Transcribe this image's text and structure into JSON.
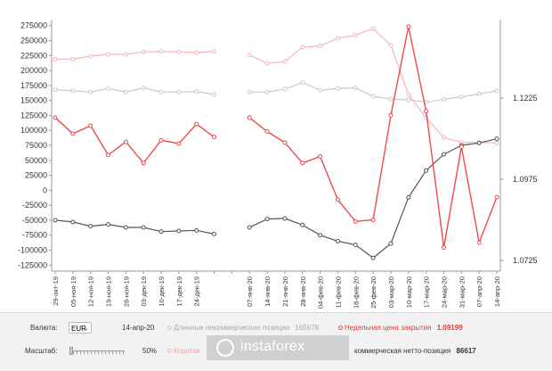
{
  "chart_data": {
    "type": "line",
    "categories": [
      "29-окт-19",
      "05-ноя-19",
      "12-ноя-19",
      "19-ноя-19",
      "26-ноя-19",
      "03-дек-19",
      "10-дек-19",
      "17-дек-19",
      "24-дек-19",
      "",
      "",
      "07-янв-20",
      "14-янв-20",
      "21-янв-20",
      "28-янв-20",
      "04-фев-20",
      "11-фев-20",
      "18-фев-20",
      "25-фев-20",
      "03-мар-20",
      "10-мар-20",
      "17-мар-20",
      "24-мар-20",
      "31-мар-20",
      "07-апр-20",
      "14-апр-20"
    ],
    "left_axis": {
      "ticks": [
        275000,
        250000,
        225000,
        200000,
        175000,
        150000,
        125000,
        100000,
        75000,
        50000,
        25000,
        0,
        -25000,
        -50000,
        -75000,
        -100000,
        -125000
      ],
      "min": -135000,
      "max": 285000
    },
    "right_axis": {
      "ticks": [
        1.1225,
        1.0975,
        1.0725
      ],
      "display": [
        "1.1225",
        "1.0975",
        "1.0725"
      ]
    },
    "series": [
      {
        "key": "long",
        "color": "#c9c9c9",
        "axis": "left",
        "values": [
          168000,
          166000,
          164000,
          170000,
          164000,
          171000,
          164000,
          164000,
          165000,
          160000,
          null,
          164000,
          164000,
          169000,
          180000,
          167000,
          170000,
          171000,
          157000,
          152000,
          151000,
          147000,
          152000,
          156000,
          161000,
          166000
        ]
      },
      {
        "key": "short",
        "color": "#f4b8b8",
        "axis": "left",
        "values": [
          219000,
          219000,
          224000,
          227000,
          227000,
          231000,
          232000,
          231000,
          230000,
          232000,
          null,
          226000,
          212000,
          215000,
          239000,
          241000,
          254000,
          259000,
          270000,
          242000,
          160000,
          121000,
          88000,
          80000,
          80000,
          79000
        ]
      },
      {
        "key": "net",
        "color": "#555555",
        "axis": "left",
        "values": [
          -50000,
          -53000,
          -60000,
          -57000,
          -62000,
          -62000,
          -69000,
          -68000,
          -67000,
          -73000,
          null,
          -62000,
          -48000,
          -47000,
          -58000,
          -75000,
          -85000,
          -91000,
          -113000,
          -89000,
          -12000,
          33000,
          60000,
          75000,
          79000,
          86000
        ]
      },
      {
        "key": "price",
        "color": "#ef4a4a",
        "axis": "right",
        "values": [
          1.1165,
          1.1115,
          1.114,
          1.105,
          1.109,
          1.1025,
          1.1095,
          1.1085,
          1.1145,
          1.1105,
          null,
          1.1165,
          1.1122,
          1.1088,
          1.1025,
          1.1045,
          1.0912,
          1.0845,
          1.085,
          1.1172,
          1.1445,
          1.1185,
          1.0765,
          1.1075,
          1.078,
          1.092
        ]
      }
    ]
  },
  "controls": {
    "currency_label": "Валюта:",
    "currency_value": "EUR",
    "date": "14-апр-20",
    "long_label": "Длинные некоммерческие позиции",
    "long_value": "165678",
    "close_label": "Недельная цена закрытия",
    "close_value": "1.09199",
    "scale_label": "Масштаб:",
    "scale_value": "50%",
    "short_label": "Коротки",
    "net_label": "коммерческая нетто-позиция",
    "net_value": "86617"
  },
  "watermark": {
    "text": "instaforex"
  },
  "colors": {
    "long": "#c9c9c9",
    "short": "#f4b8b8",
    "net": "#555555",
    "price": "#ef4a4a"
  }
}
